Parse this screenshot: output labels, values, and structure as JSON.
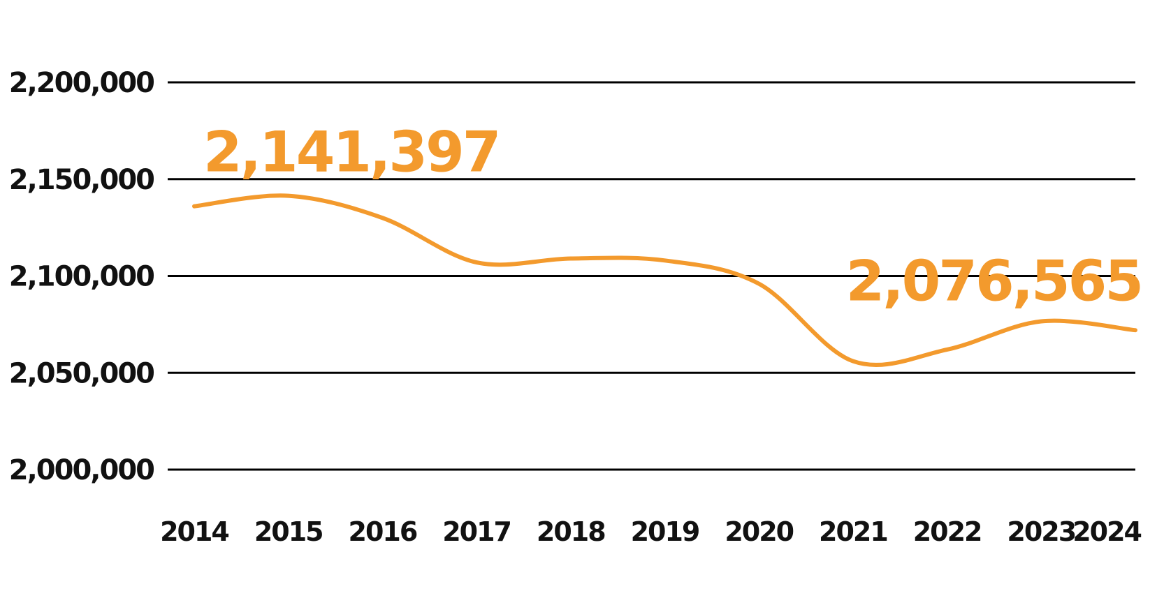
{
  "chart_data": {
    "type": "line",
    "x": [
      "2014",
      "2015",
      "2016",
      "2017",
      "2018",
      "2019",
      "2020",
      "2021",
      "2022",
      "2023",
      "2024"
    ],
    "series": [
      {
        "values": [
          2136000,
          2141397,
          2130000,
          2107000,
          2109000,
          2108000,
          2096000,
          2056000,
          2062000,
          2076565,
          2072000
        ]
      }
    ],
    "ylim": [
      2000000,
      2200000
    ],
    "yticks": [
      2200000,
      2150000,
      2100000,
      2050000,
      2000000
    ],
    "ytick_labels": [
      "2,200,000",
      "2,150,000",
      "2,100,000",
      "2,050,000",
      "2,000,000"
    ],
    "annotations": [
      {
        "text": "2,141,397",
        "year": "2015"
      },
      {
        "text": "2,076,565",
        "year": "2023"
      }
    ],
    "grid": "horizontal",
    "line_color": "#F39A2D",
    "grid_color": "#000000",
    "text_color": "#111111"
  }
}
